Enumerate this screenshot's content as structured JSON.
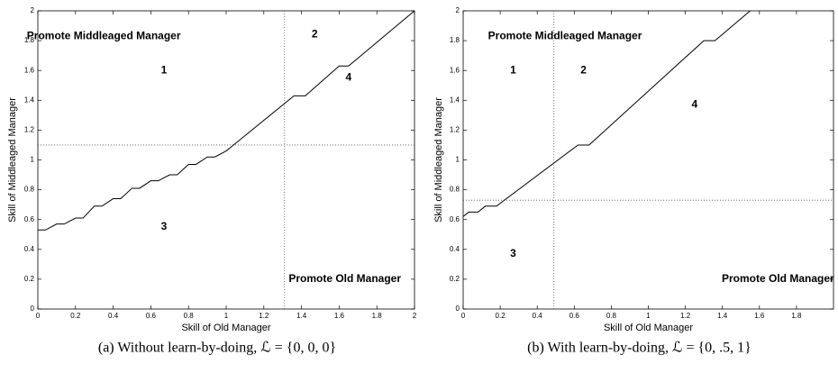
{
  "chart_data": [
    {
      "type": "line",
      "caption": "(a) Without learn-by-doing, ℒ = {0, 0, 0}",
      "xlabel": "Skill of Old Manager",
      "ylabel": "Skill of Middleaged Manager",
      "x": [
        0,
        0.04,
        0.1,
        0.14,
        0.2,
        0.24,
        0.3,
        0.34,
        0.4,
        0.44,
        0.5,
        0.54,
        0.6,
        0.64,
        0.7,
        0.74,
        0.8,
        0.84,
        0.9,
        0.94,
        1.0,
        1.36,
        1.42,
        1.6,
        1.65,
        2
      ],
      "values": [
        0.53,
        0.53,
        0.57,
        0.57,
        0.61,
        0.61,
        0.69,
        0.69,
        0.74,
        0.74,
        0.81,
        0.81,
        0.86,
        0.86,
        0.9,
        0.9,
        0.97,
        0.97,
        1.02,
        1.02,
        1.06,
        1.43,
        1.43,
        1.63,
        1.63,
        2
      ],
      "color": "#000000",
      "xlim": [
        0,
        2
      ],
      "ylim": [
        0,
        2
      ],
      "xticks": [
        0,
        0.2,
        0.4,
        0.6,
        0.8,
        1,
        1.2,
        1.4,
        1.6,
        1.8,
        2
      ],
      "yticks": [
        0,
        0.2,
        0.4,
        0.6,
        0.8,
        1,
        1.2,
        1.4,
        1.6,
        1.8,
        2
      ],
      "reference_lines": {
        "x": 1.31,
        "y": 1.1
      },
      "annotations": [
        "Promote Middleaged Manager",
        "1",
        "2",
        "4",
        "3",
        "Promote Old Manager"
      ]
    },
    {
      "type": "line",
      "caption": "(b) With learn-by-doing, ℒ = {0, .5, 1}",
      "xlabel": "Skill of Old Manager",
      "ylabel": "Skill of Middleaged Manager",
      "x": [
        0,
        0.03,
        0.08,
        0.12,
        0.18,
        0.62,
        0.68,
        1.3,
        1.36,
        1.55
      ],
      "values": [
        0.62,
        0.65,
        0.65,
        0.69,
        0.69,
        1.1,
        1.1,
        1.8,
        1.8,
        2
      ],
      "color": "#000000",
      "xlim": [
        0,
        2
      ],
      "ylim": [
        0,
        2
      ],
      "xticks": [
        0,
        0.2,
        0.4,
        0.6,
        0.8,
        1,
        1.2,
        1.4,
        1.6,
        1.8
      ],
      "yticks": [
        0,
        0.2,
        0.4,
        0.6,
        0.8,
        1,
        1.2,
        1.4,
        1.6,
        1.8,
        2
      ],
      "reference_lines": {
        "x": 0.49,
        "y": 0.73
      },
      "annotations": [
        "Promote Middleaged Manager",
        "1",
        "2",
        "4",
        "3",
        "Promote Old Manager"
      ]
    }
  ]
}
